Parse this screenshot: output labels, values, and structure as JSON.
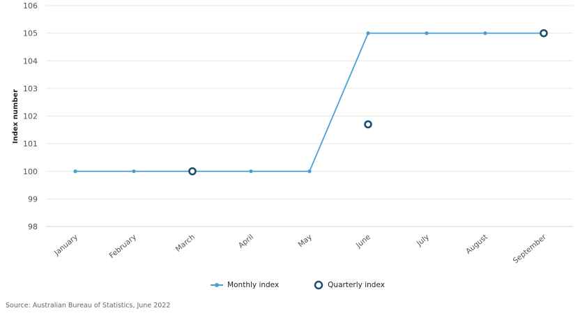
{
  "chart_data": {
    "type": "line",
    "title": "",
    "xlabel": "",
    "ylabel": "Index number",
    "ylim": [
      98,
      106
    ],
    "yticks": [
      98,
      99,
      100,
      101,
      102,
      103,
      104,
      105,
      106
    ],
    "categories": [
      "January",
      "February",
      "March",
      "April",
      "May",
      "June",
      "July",
      "August",
      "September"
    ],
    "series": [
      {
        "name": "Monthly index",
        "style": "line-with-dots",
        "color": "#4a9fd4",
        "values": [
          100,
          100,
          100,
          100,
          100,
          105,
          105,
          105,
          105
        ]
      },
      {
        "name": "Quarterly index",
        "style": "hollow-circle-markers",
        "color": "#1b4f72",
        "values": [
          null,
          null,
          100,
          null,
          null,
          101.7,
          null,
          null,
          105
        ]
      }
    ],
    "grid": true,
    "legend_position": "bottom-center"
  },
  "legend": {
    "monthly_label": "Monthly index",
    "quarterly_label": "Quarterly index"
  },
  "source": "Source: Australian Bureau of Statistics, June 2022"
}
